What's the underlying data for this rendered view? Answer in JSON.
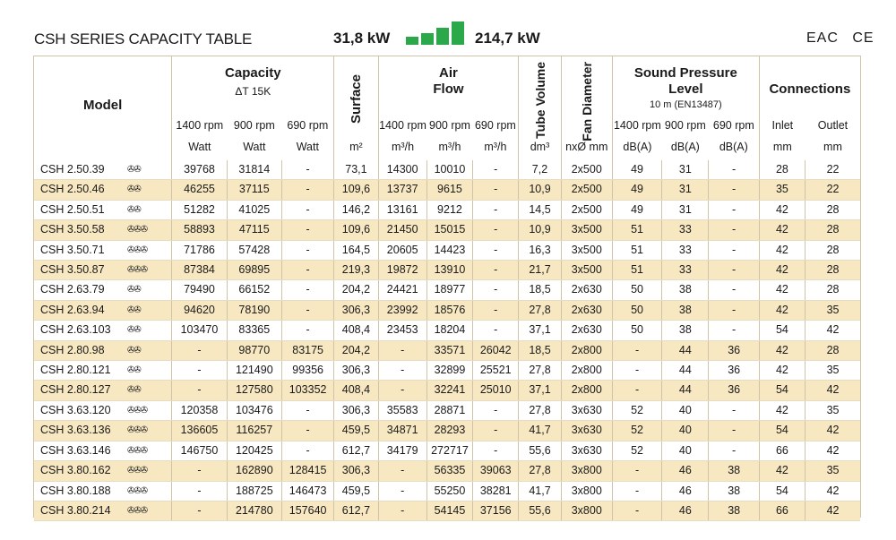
{
  "header": {
    "title": "CSH SERIES CAPACITY TABLE",
    "capacity_min": "31,8 kW",
    "capacity_max": "214,7 kW",
    "bar_color": "#2ba84a",
    "certifications": [
      "EAC",
      "CE"
    ]
  },
  "columns": {
    "model": "Model",
    "capacity": {
      "title": "Capacity",
      "sub": "ΔT 15K",
      "speeds": [
        "1400 rpm",
        "900 rpm",
        "690 rpm"
      ],
      "unit": "Watt"
    },
    "surface": {
      "title": "Surface",
      "unit": "m²"
    },
    "air_flow": {
      "title1": "Air",
      "title2": "Flow",
      "speeds": [
        "1400 rpm",
        "900 rpm",
        "690 rpm"
      ],
      "unit": "m³/h"
    },
    "tube_volume": {
      "title": "Tube Volume",
      "unit": "dm³"
    },
    "fan_diameter": {
      "title": "Fan Diameter",
      "unit": "nxØ mm"
    },
    "sound": {
      "title1": "Sound Pressure",
      "title2": "Level",
      "sub": "10 m (EN13487)",
      "speeds": [
        "1400 rpm",
        "900 rpm",
        "690 rpm"
      ],
      "unit": "dB(A)"
    },
    "connections": {
      "title": "Connections",
      "inlet": "Inlet",
      "outlet": "Outlet",
      "unit": "mm"
    }
  },
  "rows": [
    [
      "CSH 2.50.39",
      "✇✇",
      "39768",
      "31814",
      "-",
      "73,1",
      "14300",
      "10010",
      "-",
      "7,2",
      "2x500",
      "49",
      "31",
      "-",
      "28",
      "22"
    ],
    [
      "CSH 2.50.46",
      "✇✇",
      "46255",
      "37115",
      "-",
      "109,6",
      "13737",
      "9615",
      "-",
      "10,9",
      "2x500",
      "49",
      "31",
      "-",
      "35",
      "22"
    ],
    [
      "CSH 2.50.51",
      "✇✇",
      "51282",
      "41025",
      "-",
      "146,2",
      "13161",
      "9212",
      "-",
      "14,5",
      "2x500",
      "49",
      "31",
      "-",
      "42",
      "28"
    ],
    [
      "CSH 3.50.58",
      "✇✇✇",
      "58893",
      "47115",
      "-",
      "109,6",
      "21450",
      "15015",
      "-",
      "10,9",
      "3x500",
      "51",
      "33",
      "-",
      "42",
      "28"
    ],
    [
      "CSH 3.50.71",
      "✇✇✇",
      "71786",
      "57428",
      "-",
      "164,5",
      "20605",
      "14423",
      "-",
      "16,3",
      "3x500",
      "51",
      "33",
      "-",
      "42",
      "28"
    ],
    [
      "CSH 3.50.87",
      "✇✇✇",
      "87384",
      "69895",
      "-",
      "219,3",
      "19872",
      "13910",
      "-",
      "21,7",
      "3x500",
      "51",
      "33",
      "-",
      "42",
      "28"
    ],
    [
      "CSH 2.63.79",
      "✇✇",
      "79490",
      "66152",
      "-",
      "204,2",
      "24421",
      "18977",
      "-",
      "18,5",
      "2x630",
      "50",
      "38",
      "-",
      "42",
      "28"
    ],
    [
      "CSH 2.63.94",
      "✇✇",
      "94620",
      "78190",
      "-",
      "306,3",
      "23992",
      "18576",
      "-",
      "27,8",
      "2x630",
      "50",
      "38",
      "-",
      "42",
      "35"
    ],
    [
      "CSH 2.63.103",
      "✇✇",
      "103470",
      "83365",
      "-",
      "408,4",
      "23453",
      "18204",
      "-",
      "37,1",
      "2x630",
      "50",
      "38",
      "-",
      "54",
      "42"
    ],
    [
      "CSH 2.80.98",
      "✇✇",
      "-",
      "98770",
      "83175",
      "204,2",
      "-",
      "33571",
      "26042",
      "18,5",
      "2x800",
      "-",
      "44",
      "36",
      "42",
      "28"
    ],
    [
      "CSH 2.80.121",
      "✇✇",
      "-",
      "121490",
      "99356",
      "306,3",
      "-",
      "32899",
      "25521",
      "27,8",
      "2x800",
      "-",
      "44",
      "36",
      "42",
      "35"
    ],
    [
      "CSH 2.80.127",
      "✇✇",
      "-",
      "127580",
      "103352",
      "408,4",
      "-",
      "32241",
      "25010",
      "37,1",
      "2x800",
      "-",
      "44",
      "36",
      "54",
      "42"
    ],
    [
      "CSH 3.63.120",
      "✇✇✇",
      "120358",
      "103476",
      "-",
      "306,3",
      "35583",
      "28871",
      "-",
      "27,8",
      "3x630",
      "52",
      "40",
      "-",
      "42",
      "35"
    ],
    [
      "CSH 3.63.136",
      "✇✇✇",
      "136605",
      "116257",
      "-",
      "459,5",
      "34871",
      "28293",
      "-",
      "41,7",
      "3x630",
      "52",
      "40",
      "-",
      "54",
      "42"
    ],
    [
      "CSH 3.63.146",
      "✇✇✇",
      "146750",
      "120425",
      "-",
      "612,7",
      "34179",
      "272717",
      "-",
      "55,6",
      "3x630",
      "52",
      "40",
      "-",
      "66",
      "42"
    ],
    [
      "CSH 3.80.162",
      "✇✇✇",
      "-",
      "162890",
      "128415",
      "306,3",
      "-",
      "56335",
      "39063",
      "27,8",
      "3x800",
      "-",
      "46",
      "38",
      "42",
      "35"
    ],
    [
      "CSH 3.80.188",
      "✇✇✇",
      "-",
      "188725",
      "146473",
      "459,5",
      "-",
      "55250",
      "38281",
      "41,7",
      "3x800",
      "-",
      "46",
      "38",
      "54",
      "42"
    ],
    [
      "CSH 3.80.214",
      "✇✇✇",
      "-",
      "214780",
      "157640",
      "612,7",
      "-",
      "54145",
      "37156",
      "55,6",
      "3x800",
      "-",
      "46",
      "38",
      "66",
      "42"
    ]
  ]
}
